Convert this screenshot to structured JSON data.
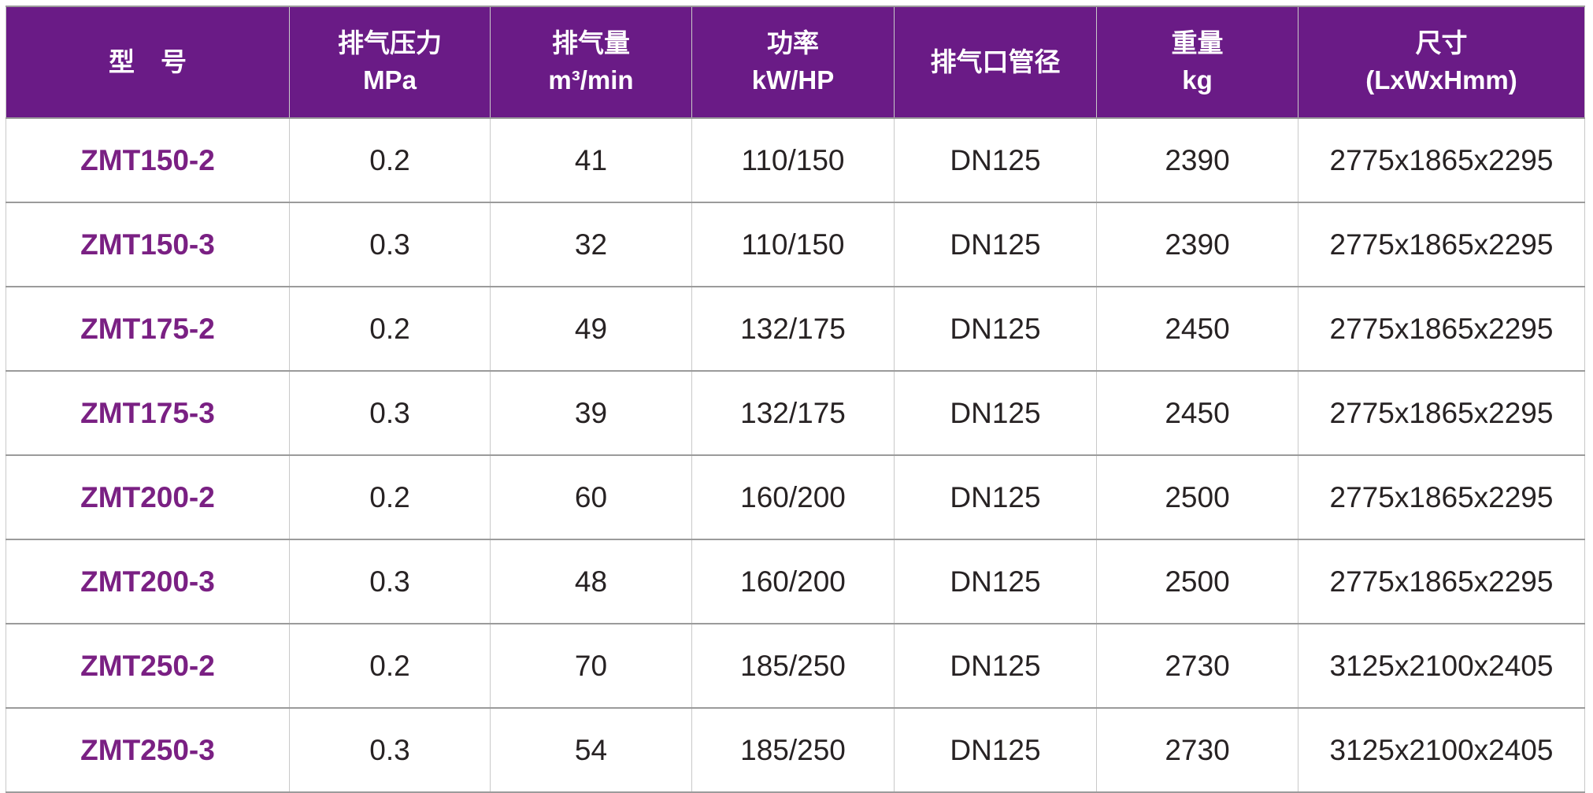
{
  "table": {
    "colors": {
      "header_background": "#6A1B86",
      "header_text": "#FFFFFF",
      "model_text": "#7A2083",
      "body_text": "#272223",
      "border_light": "#C9C9C9",
      "border_dark": "#9B9B9B"
    },
    "columns": [
      {
        "id": "model",
        "lines": [
          "型　号"
        ]
      },
      {
        "id": "exhaust-pressure",
        "lines": [
          "排气压力",
          "MPa"
        ]
      },
      {
        "id": "exhaust-volume",
        "lines": [
          "排气量",
          "m³/min"
        ]
      },
      {
        "id": "power",
        "lines": [
          "功率",
          "kW/HP"
        ]
      },
      {
        "id": "outlet-diameter",
        "lines": [
          "排气口管径"
        ]
      },
      {
        "id": "weight",
        "lines": [
          "重量",
          "kg"
        ]
      },
      {
        "id": "dimensions",
        "lines": [
          "尺寸",
          "(LxWxHmm)"
        ]
      }
    ],
    "rows": [
      [
        "ZMT150-2",
        "0.2",
        "41",
        "110/150",
        "DN125",
        "2390",
        "2775x1865x2295"
      ],
      [
        "ZMT150-3",
        "0.3",
        "32",
        "110/150",
        "DN125",
        "2390",
        "2775x1865x2295"
      ],
      [
        "ZMT175-2",
        "0.2",
        "49",
        "132/175",
        "DN125",
        "2450",
        "2775x1865x2295"
      ],
      [
        "ZMT175-3",
        "0.3",
        "39",
        "132/175",
        "DN125",
        "2450",
        "2775x1865x2295"
      ],
      [
        "ZMT200-2",
        "0.2",
        "60",
        "160/200",
        "DN125",
        "2500",
        "2775x1865x2295"
      ],
      [
        "ZMT200-3",
        "0.3",
        "48",
        "160/200",
        "DN125",
        "2500",
        "2775x1865x2295"
      ],
      [
        "ZMT250-2",
        "0.2",
        "70",
        "185/250",
        "DN125",
        "2730",
        "3125x2100x2405"
      ],
      [
        "ZMT250-3",
        "0.3",
        "54",
        "185/250",
        "DN125",
        "2730",
        "3125x2100x2405"
      ]
    ]
  }
}
